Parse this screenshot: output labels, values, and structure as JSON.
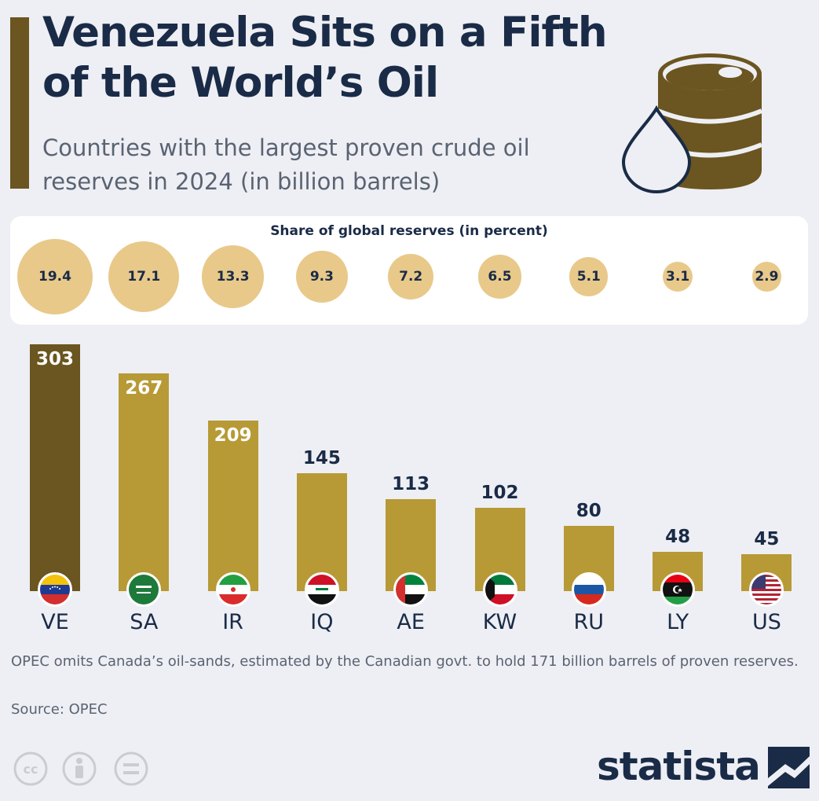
{
  "title": "Venezuela Sits on a Fifth of the World’s Oil",
  "subtitle": "Countries with the largest proven crude oil reserves in 2024 (in billion barrels)",
  "share_heading": "Share of global reserves (in percent)",
  "note": "OPEC omits Canada’s oil-sands, estimated by the Canadian govt. to hold 171 billion barrels of proven reserves.",
  "source": "Source: OPEC",
  "brand": "statista",
  "colors": {
    "highlight_bar": "#6b5520",
    "bar": "#b79a36",
    "bubble": "#e8c98a",
    "title": "#1a2b47"
  },
  "icons": [
    "oil-barrel-icon",
    "oil-drop-icon",
    "cc-icon",
    "attribution-icon",
    "no-derivatives-icon",
    "statista-logo-icon"
  ],
  "chart_data": {
    "type": "bar",
    "title": "Venezuela Sits on a Fifth of the World’s Oil",
    "ylabel": "billion barrels",
    "ylim": [
      0,
      303
    ],
    "categories": [
      "VE",
      "SA",
      "IR",
      "IQ",
      "AE",
      "KW",
      "RU",
      "LY",
      "US"
    ],
    "values": [
      303,
      267,
      209,
      145,
      113,
      102,
      80,
      48,
      45
    ],
    "value_labels": [
      "303",
      "267",
      "209",
      "145",
      "113",
      "102",
      "80",
      "48",
      "45"
    ],
    "share_percent": [
      19.4,
      17.1,
      13.3,
      9.3,
      7.2,
      6.5,
      5.1,
      3.1,
      2.9
    ],
    "share_labels": [
      "19.4",
      "17.1",
      "13.3",
      "9.3",
      "7.2",
      "6.5",
      "5.1",
      "3.1",
      "2.9"
    ],
    "highlighted": "VE"
  }
}
